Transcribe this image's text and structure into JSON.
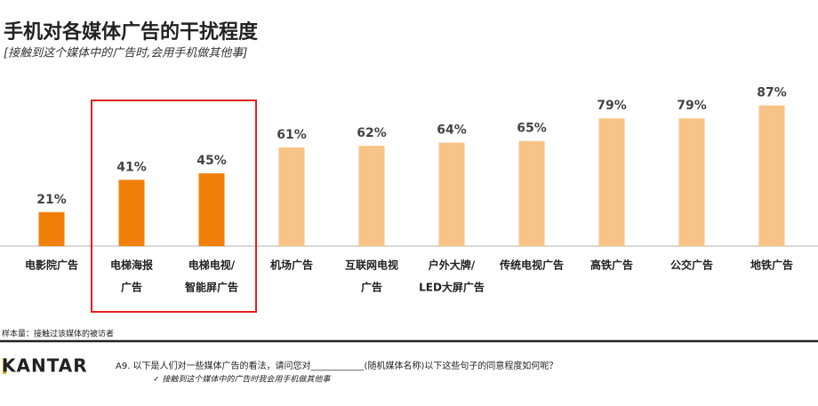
{
  "chart_data": {
    "type": "bar",
    "title": "手机对各媒体广告的干扰程度",
    "subtitle": "[接触到这个媒体中的广告时,会用手机做其他事]",
    "categories": [
      [
        "电影院广告"
      ],
      [
        "电梯海报",
        "广告"
      ],
      [
        "电梯电视/",
        "智能屏广告"
      ],
      [
        "机场广告"
      ],
      [
        "互联网电视",
        "广告"
      ],
      [
        "户外大牌/",
        "LED大屏广告"
      ],
      [
        "传统电视广告"
      ],
      [
        "高铁广告"
      ],
      [
        "公交广告"
      ],
      [
        "地铁广告"
      ]
    ],
    "values": [
      21,
      41,
      45,
      61,
      62,
      64,
      65,
      79,
      79,
      87
    ],
    "value_labels": [
      "21%",
      "41%",
      "45%",
      "61%",
      "62%",
      "64%",
      "65%",
      "79%",
      "79%",
      "87%"
    ],
    "colors": [
      "#f07f09",
      "#f07f09",
      "#f07f09",
      "#f8c386",
      "#f8c386",
      "#f8c386",
      "#f8c386",
      "#f8c386",
      "#f8c386",
      "#f8c386"
    ],
    "highlight": [
      1,
      2
    ],
    "highlight_color": "#e02020",
    "ylim": [
      0,
      100
    ]
  },
  "footer": {
    "note": "样本量：接触过该媒体的被访者",
    "brand": "KANTAR",
    "question": "A9. 以下是人们对一些媒体广告的看法，请问您对____________(随机媒体名称)以下这些句子的同意程度如何呢？",
    "statement": "✓  接触到这个媒体中的广告时我会用手机做其他事"
  }
}
